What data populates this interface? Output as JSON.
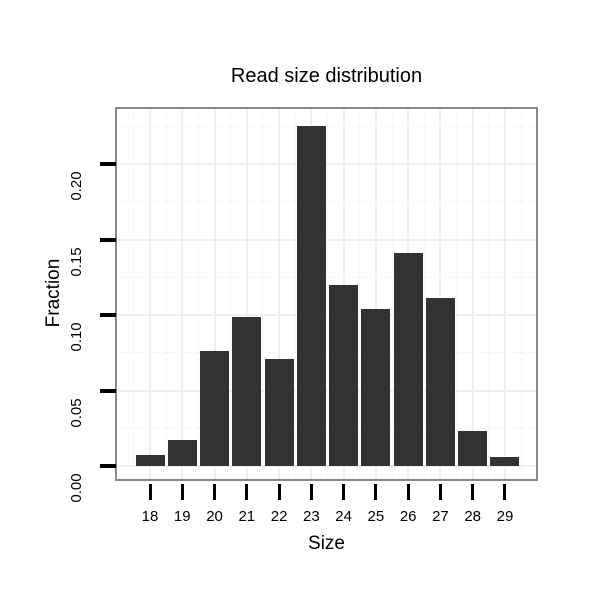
{
  "chart_data": {
    "type": "bar",
    "title": "Read size distribution",
    "xlabel": "Size",
    "ylabel": "Fraction",
    "categories": [
      "18",
      "19",
      "20",
      "21",
      "22",
      "23",
      "24",
      "25",
      "26",
      "27",
      "28",
      "29"
    ],
    "values": [
      0.007,
      0.017,
      0.076,
      0.099,
      0.071,
      0.225,
      0.12,
      0.104,
      0.141,
      0.111,
      0.023,
      0.006
    ],
    "ylim": [
      -0.009,
      0.236
    ],
    "ytick_labels": [
      "0.00",
      "0.05",
      "0.10",
      "0.15",
      "0.20"
    ],
    "ytick_values": [
      0,
      0.05,
      0.1,
      0.15,
      0.2
    ],
    "yminor_values": [
      0.025,
      0.075,
      0.125,
      0.175,
      0.225
    ],
    "grid": "major and minor, very light, on white panel",
    "legend": "none",
    "colors": {
      "bar": "#333333",
      "panel_border": "#888888",
      "grid_major": "#efefef",
      "grid_minor": "#f7f7f7",
      "text": "#000000",
      "background": "#ffffff"
    }
  }
}
